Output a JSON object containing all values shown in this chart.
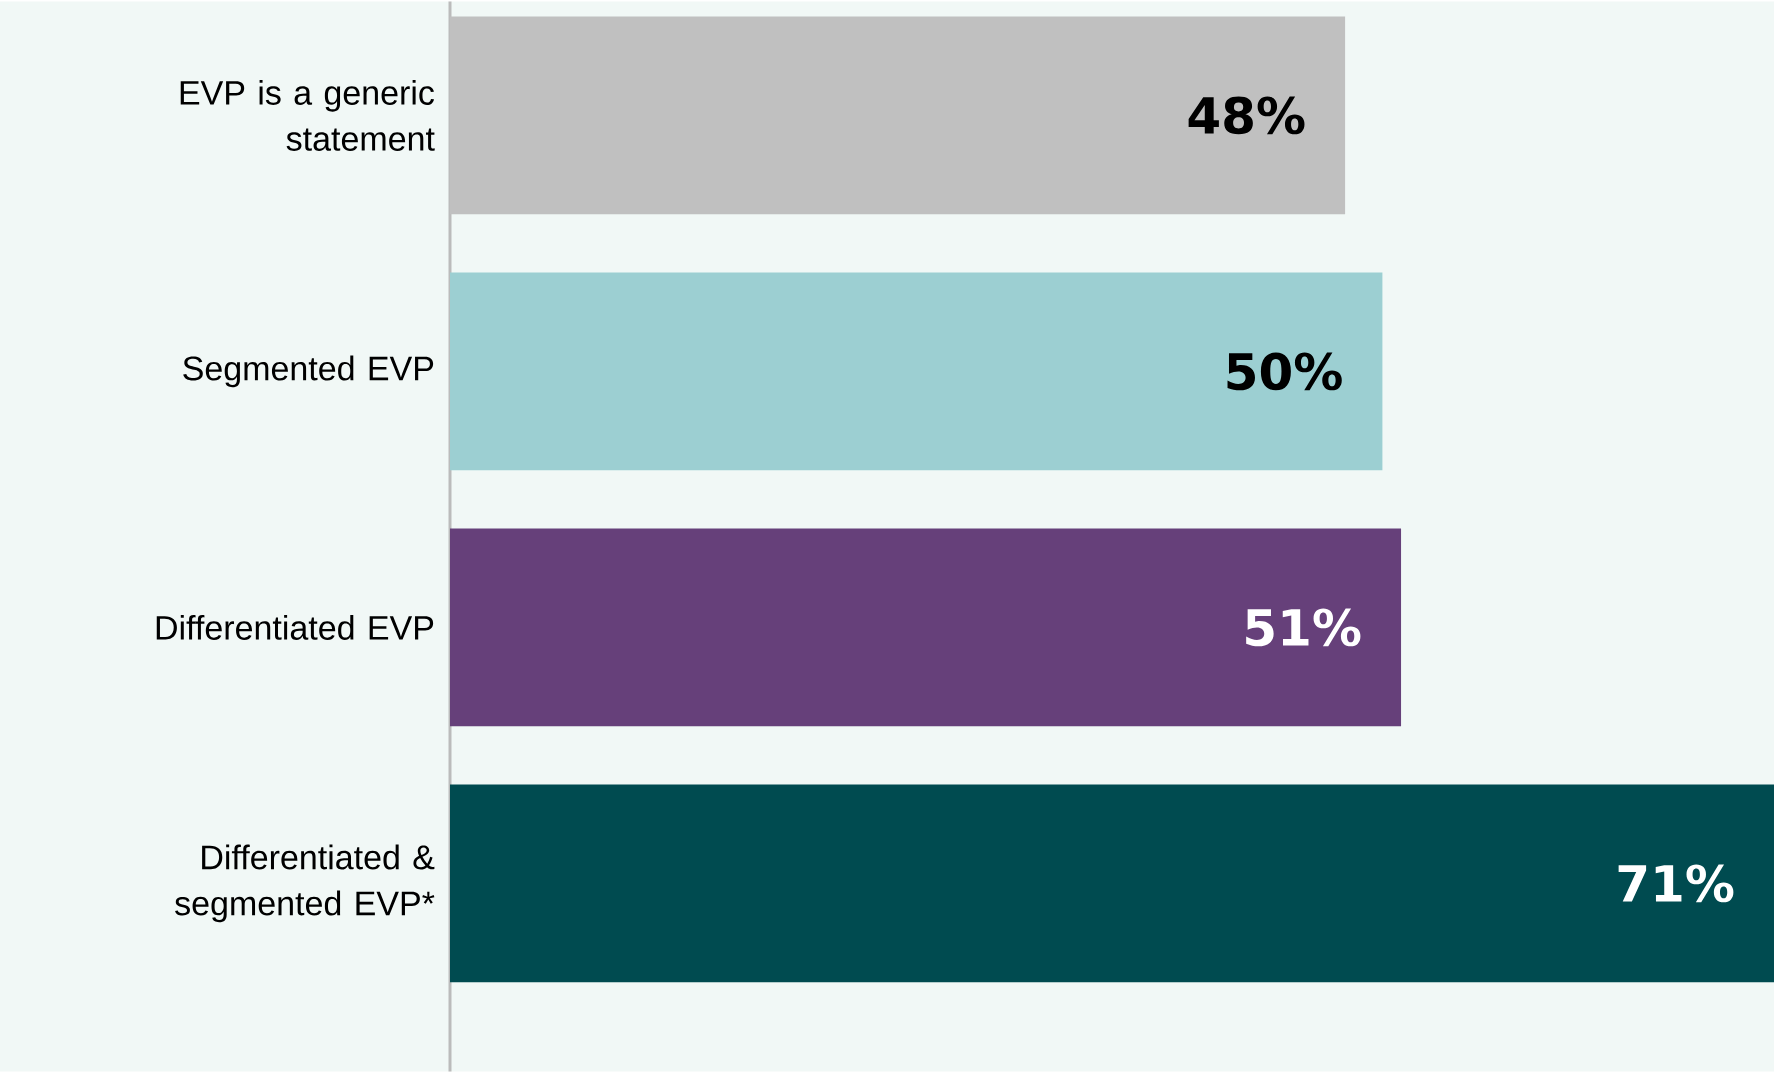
{
  "chart_data": {
    "type": "bar",
    "orientation": "horizontal",
    "data_labels": true,
    "categories": [
      "EVP is a generic statement",
      "Segmented EVP",
      "Differentiated EVP",
      "Differentiated & segmented EVP*"
    ],
    "values": [
      48,
      50,
      51,
      71
    ],
    "colors": [
      "#c0c0c0",
      "#9ccfd2",
      "#66407a",
      "#004b50"
    ],
    "value_labels": [
      "48%",
      "50%",
      "51%",
      "71%"
    ]
  }
}
